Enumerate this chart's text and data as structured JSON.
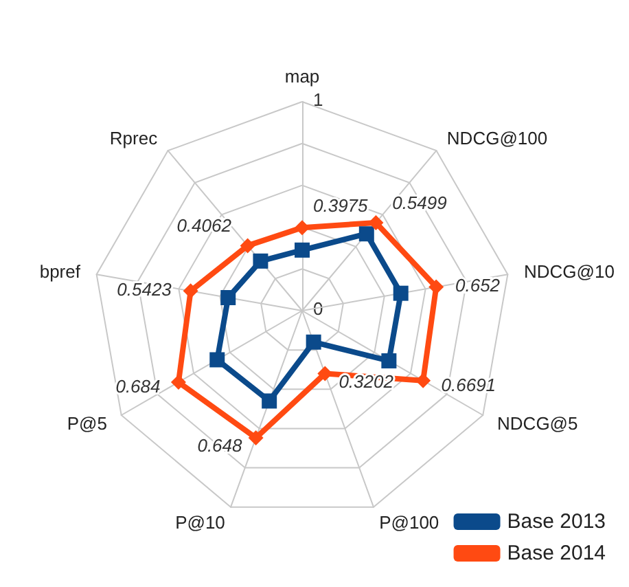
{
  "chart_data": {
    "type": "radar",
    "categories": [
      "map",
      "NDCG@100",
      "NDCG@10",
      "NDCG@5",
      "P@100",
      "P@10",
      "P@5",
      "bpref",
      "Rprec"
    ],
    "ylim": [
      0,
      1
    ],
    "yticks": [
      0,
      1
    ],
    "grid": true,
    "legend": "bottom right",
    "series": [
      {
        "name": "Base 2013",
        "color": "#0b4a8b",
        "marker": "square",
        "values": [
          0.29,
          0.48,
          0.48,
          0.48,
          0.16,
          0.46,
          0.47,
          0.36,
          0.31
        ]
      },
      {
        "name": "Base 2014",
        "color": "#ff4a12",
        "marker": "diamond",
        "data_labels": true,
        "values": [
          0.3975,
          0.5499,
          0.652,
          0.6691,
          0.3202,
          0.648,
          0.684,
          0.5423,
          0.4062
        ]
      }
    ]
  }
}
